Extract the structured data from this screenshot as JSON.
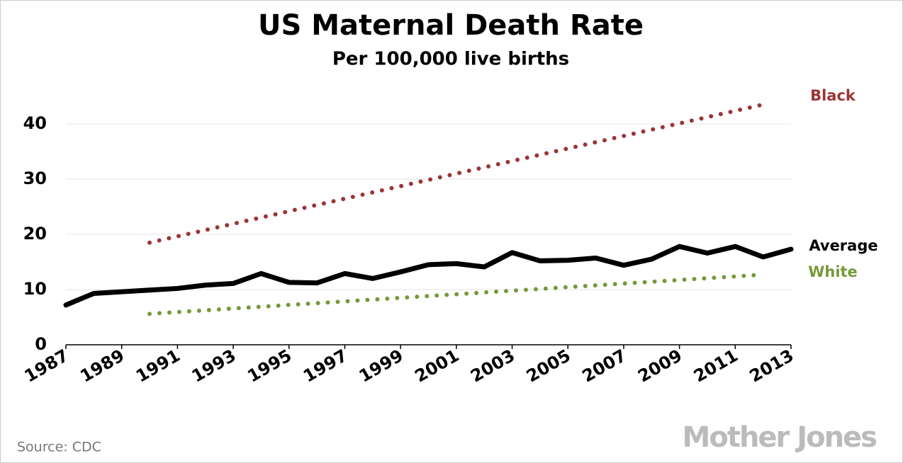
{
  "chart_data": {
    "type": "line",
    "title": "US Maternal Death Rate",
    "subtitle": "Per 100,000 live births",
    "source": "Source:  CDC",
    "logo": "Mother Jones",
    "xlim": [
      1987,
      2013
    ],
    "xticks": [
      1987,
      1989,
      1991,
      1993,
      1995,
      1997,
      1999,
      2001,
      2003,
      2005,
      2007,
      2009,
      2011,
      2013
    ],
    "ylim": [
      0,
      45
    ],
    "yticks": [
      0,
      10,
      20,
      30,
      40
    ],
    "grid": true,
    "series": [
      {
        "name": "Black",
        "color": "#9b3535",
        "style": "dotted",
        "x": [
          1990,
          2012
        ],
        "values": [
          18.5,
          43.5
        ]
      },
      {
        "name": "Average",
        "color": "#000000",
        "style": "solid",
        "x": [
          1987,
          1988,
          1989,
          1990,
          1991,
          1992,
          1993,
          1994,
          1995,
          1996,
          1997,
          1998,
          1999,
          2000,
          2001,
          2002,
          2003,
          2004,
          2005,
          2006,
          2007,
          2008,
          2009,
          2010,
          2011,
          2012,
          2013
        ],
        "values": [
          7.2,
          9.3,
          9.6,
          9.9,
          10.2,
          10.8,
          11.1,
          12.9,
          11.3,
          11.2,
          12.9,
          12.0,
          13.2,
          14.5,
          14.7,
          14.1,
          16.7,
          15.2,
          15.3,
          15.7,
          14.4,
          15.5,
          17.8,
          16.6,
          17.8,
          15.9,
          17.3
        ]
      },
      {
        "name": "White",
        "color": "#76993a",
        "style": "dotted",
        "x": [
          1990,
          2012
        ],
        "values": [
          5.6,
          12.7
        ]
      }
    ]
  }
}
